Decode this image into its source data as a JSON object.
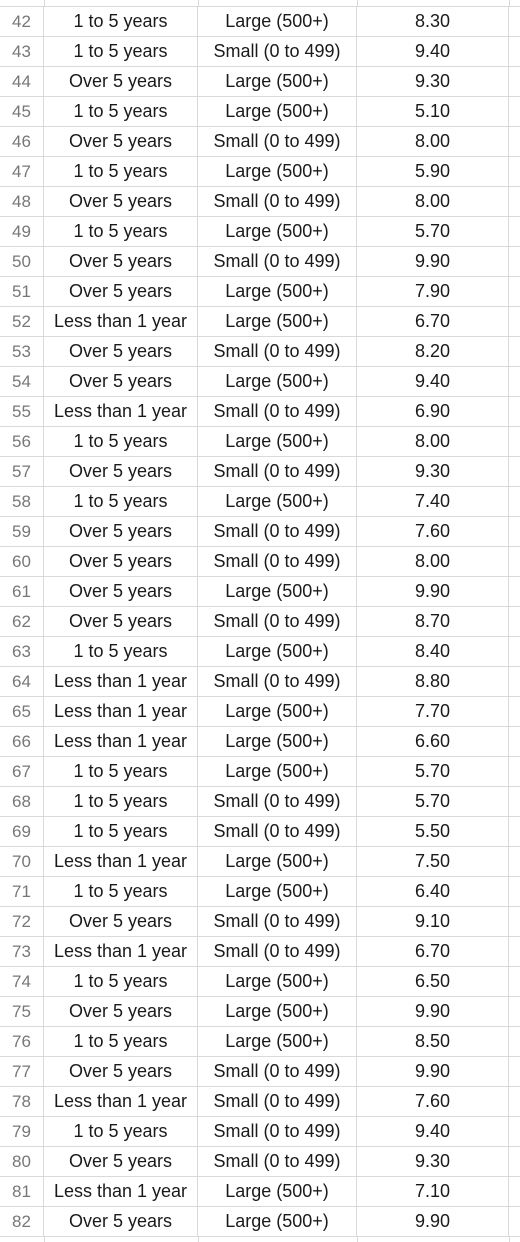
{
  "rows": [
    {
      "num": "42",
      "tenure": "1 to 5 years",
      "size": "Large (500+)",
      "score": "8.30"
    },
    {
      "num": "43",
      "tenure": "1 to 5 years",
      "size": "Small (0 to 499)",
      "score": "9.40"
    },
    {
      "num": "44",
      "tenure": "Over 5 years",
      "size": "Large (500+)",
      "score": "9.30"
    },
    {
      "num": "45",
      "tenure": "1 to 5 years",
      "size": "Large (500+)",
      "score": "5.10"
    },
    {
      "num": "46",
      "tenure": "Over 5 years",
      "size": "Small (0 to 499)",
      "score": "8.00"
    },
    {
      "num": "47",
      "tenure": "1 to 5 years",
      "size": "Large (500+)",
      "score": "5.90"
    },
    {
      "num": "48",
      "tenure": "Over 5 years",
      "size": "Small (0 to 499)",
      "score": "8.00"
    },
    {
      "num": "49",
      "tenure": "1 to 5 years",
      "size": "Large (500+)",
      "score": "5.70"
    },
    {
      "num": "50",
      "tenure": "Over 5 years",
      "size": "Small (0 to 499)",
      "score": "9.90"
    },
    {
      "num": "51",
      "tenure": "Over 5 years",
      "size": "Large (500+)",
      "score": "7.90"
    },
    {
      "num": "52",
      "tenure": "Less than 1 year",
      "size": "Large (500+)",
      "score": "6.70"
    },
    {
      "num": "53",
      "tenure": "Over 5 years",
      "size": "Small (0 to 499)",
      "score": "8.20"
    },
    {
      "num": "54",
      "tenure": "Over 5 years",
      "size": "Large (500+)",
      "score": "9.40"
    },
    {
      "num": "55",
      "tenure": "Less than 1 year",
      "size": "Small (0 to 499)",
      "score": "6.90"
    },
    {
      "num": "56",
      "tenure": "1 to 5 years",
      "size": "Large (500+)",
      "score": "8.00"
    },
    {
      "num": "57",
      "tenure": "Over 5 years",
      "size": "Small (0 to 499)",
      "score": "9.30"
    },
    {
      "num": "58",
      "tenure": "1 to 5 years",
      "size": "Large (500+)",
      "score": "7.40"
    },
    {
      "num": "59",
      "tenure": "Over 5 years",
      "size": "Small (0 to 499)",
      "score": "7.60"
    },
    {
      "num": "60",
      "tenure": "Over 5 years",
      "size": "Small (0 to 499)",
      "score": "8.00"
    },
    {
      "num": "61",
      "tenure": "Over 5 years",
      "size": "Large (500+)",
      "score": "9.90"
    },
    {
      "num": "62",
      "tenure": "Over 5 years",
      "size": "Small (0 to 499)",
      "score": "8.70"
    },
    {
      "num": "63",
      "tenure": "1 to 5 years",
      "size": "Large (500+)",
      "score": "8.40"
    },
    {
      "num": "64",
      "tenure": "Less than 1 year",
      "size": "Small (0 to 499)",
      "score": "8.80"
    },
    {
      "num": "65",
      "tenure": "Less than 1 year",
      "size": "Large (500+)",
      "score": "7.70"
    },
    {
      "num": "66",
      "tenure": "Less than 1 year",
      "size": "Large (500+)",
      "score": "6.60"
    },
    {
      "num": "67",
      "tenure": "1 to 5 years",
      "size": "Large (500+)",
      "score": "5.70"
    },
    {
      "num": "68",
      "tenure": "1 to 5 years",
      "size": "Small (0 to 499)",
      "score": "5.70"
    },
    {
      "num": "69",
      "tenure": "1 to 5 years",
      "size": "Small (0 to 499)",
      "score": "5.50"
    },
    {
      "num": "70",
      "tenure": "Less than 1 year",
      "size": "Large (500+)",
      "score": "7.50"
    },
    {
      "num": "71",
      "tenure": "1 to 5 years",
      "size": "Large (500+)",
      "score": "6.40"
    },
    {
      "num": "72",
      "tenure": "Over 5 years",
      "size": "Small (0 to 499)",
      "score": "9.10"
    },
    {
      "num": "73",
      "tenure": "Less than 1 year",
      "size": "Small (0 to 499)",
      "score": "6.70"
    },
    {
      "num": "74",
      "tenure": "1 to 5 years",
      "size": "Large (500+)",
      "score": "6.50"
    },
    {
      "num": "75",
      "tenure": "Over 5 years",
      "size": "Large (500+)",
      "score": "9.90"
    },
    {
      "num": "76",
      "tenure": "1 to 5 years",
      "size": "Large (500+)",
      "score": "8.50"
    },
    {
      "num": "77",
      "tenure": "Over 5 years",
      "size": "Small (0 to 499)",
      "score": "9.90"
    },
    {
      "num": "78",
      "tenure": "Less than 1 year",
      "size": "Small (0 to 499)",
      "score": "7.60"
    },
    {
      "num": "79",
      "tenure": "1 to 5 years",
      "size": "Small (0 to 499)",
      "score": "9.40"
    },
    {
      "num": "80",
      "tenure": "Over 5 years",
      "size": "Small (0 to 499)",
      "score": "9.30"
    },
    {
      "num": "81",
      "tenure": "Less than 1 year",
      "size": "Large (500+)",
      "score": "7.10"
    },
    {
      "num": "82",
      "tenure": "Over 5 years",
      "size": "Large (500+)",
      "score": "9.90"
    }
  ]
}
